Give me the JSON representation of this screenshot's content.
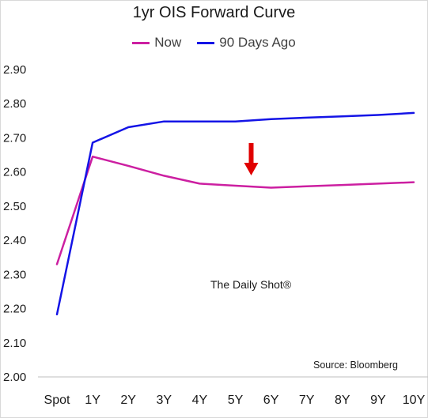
{
  "chart_data": {
    "type": "line",
    "title": "1yr OIS Forward Curve",
    "categories": [
      "Spot",
      "1Y",
      "2Y",
      "3Y",
      "4Y",
      "5Y",
      "6Y",
      "7Y",
      "8Y",
      "9Y",
      "10Y"
    ],
    "series": [
      {
        "name": "Now",
        "color": "#cc1fa1",
        "values": [
          2.33,
          2.645,
          2.618,
          2.589,
          2.566,
          2.56,
          2.554,
          2.558,
          2.562,
          2.566,
          2.57
        ]
      },
      {
        "name": "90 Days Ago",
        "color": "#1414e6",
        "values": [
          2.183,
          2.686,
          2.731,
          2.748,
          2.748,
          2.748,
          2.755,
          2.759,
          2.763,
          2.767,
          2.773
        ]
      }
    ],
    "ylim": [
      2.0,
      2.9
    ],
    "yticks": [
      "2.00",
      "2.10",
      "2.20",
      "2.30",
      "2.40",
      "2.50",
      "2.60",
      "2.70",
      "2.80",
      "2.90"
    ],
    "xlabel": "",
    "ylabel": "",
    "grid": false,
    "legend_position": "top",
    "annotations": {
      "watermark": "The Daily Shot®",
      "source": "Source: Bloomberg",
      "arrow": {
        "direction": "down",
        "color": "#e00000",
        "x_category": "5Y",
        "y_from": 2.685,
        "y_to": 2.59
      }
    }
  }
}
